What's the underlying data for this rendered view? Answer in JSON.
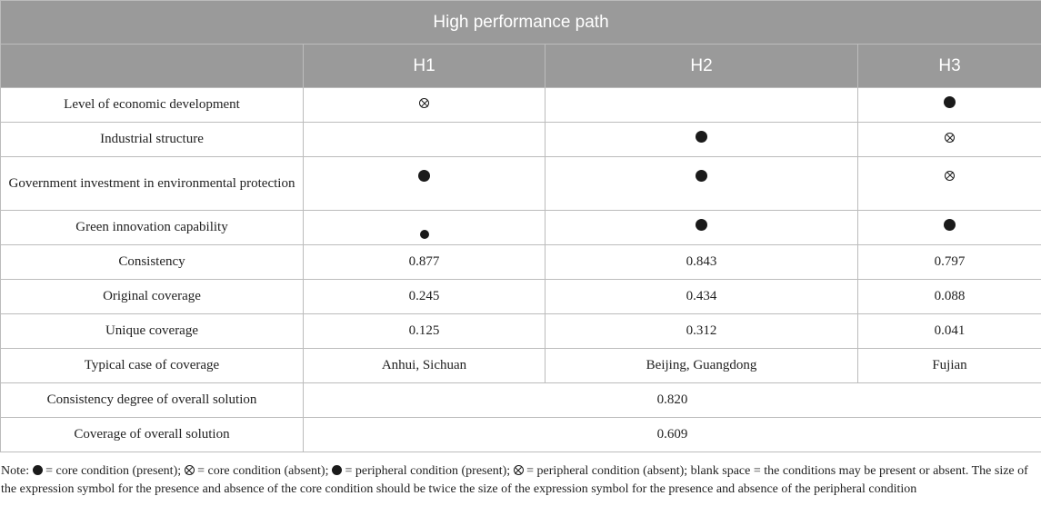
{
  "table": {
    "title": "High performance path",
    "columns": [
      "H1",
      "H2",
      "H3"
    ],
    "condition_rows": [
      {
        "label": "Level of economic development",
        "cells": [
          "core-absent",
          "blank",
          "core-present"
        ]
      },
      {
        "label": "Industrial structure",
        "cells": [
          "blank",
          "core-present",
          "core-absent"
        ]
      },
      {
        "label": "Government investment in environmental protection",
        "cells": [
          "core-present",
          "core-present",
          "core-absent"
        ]
      },
      {
        "label": "Green innovation capability",
        "cells": [
          "peripheral-present",
          "core-present",
          "core-present"
        ]
      }
    ],
    "metric_rows": [
      {
        "label": "Consistency",
        "values": [
          "0.877",
          "0.843",
          "0.797"
        ]
      },
      {
        "label": "Original coverage",
        "values": [
          "0.245",
          "0.434",
          "0.088"
        ]
      },
      {
        "label": "Unique coverage",
        "values": [
          "0.125",
          "0.312",
          "0.041"
        ]
      },
      {
        "label": "Typical case of coverage",
        "values": [
          "Anhui, Sichuan",
          "Beijing, Guangdong",
          "Fujian"
        ]
      }
    ],
    "overall_rows": [
      {
        "label": "Consistency degree of overall solution",
        "value": "0.820"
      },
      {
        "label": "Coverage of overall solution",
        "value": "0.609"
      }
    ]
  },
  "note": {
    "prefix": "Note: ",
    "part1": " = core condition (present); ",
    "part2": " = core condition (absent); ",
    "part3": " = peripheral condition (present); ",
    "part4": " = peripheral condition (absent); blank space = the conditions may be present or absent. The size of the expression symbol for the presence and absence of the core condition should be twice the size of the expression symbol for the presence and absence of the peripheral condition"
  },
  "symbols": {
    "core-present": "filled-circle-icon",
    "core-absent": "circled-times-icon",
    "peripheral-present": "small-filled-circle-icon",
    "blank": ""
  }
}
